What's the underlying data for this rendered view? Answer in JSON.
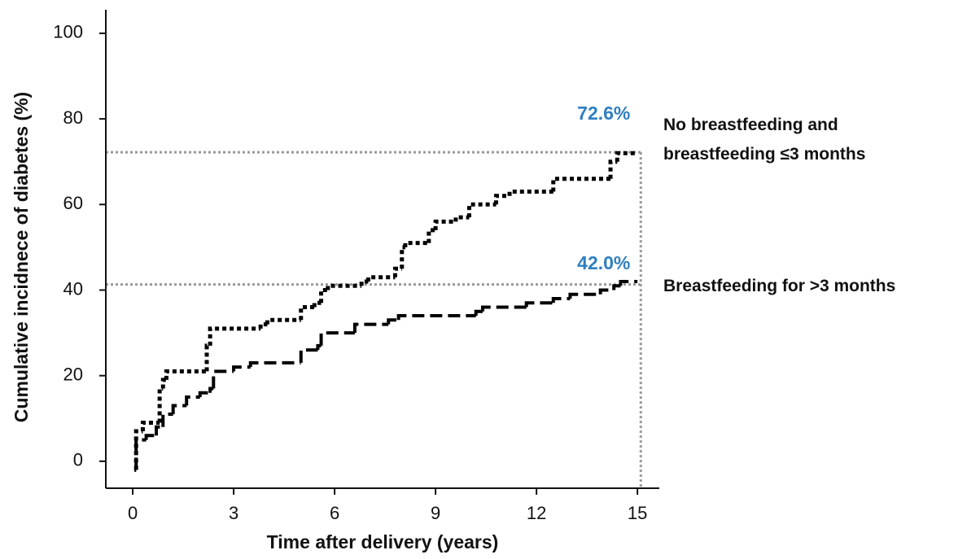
{
  "chart_data": {
    "type": "step",
    "x_label": "Time after delivery (years)",
    "y_label": "Cumulative incidnece of diabetes (%)",
    "xlim": [
      -0.8,
      15.65
    ],
    "ylim": [
      -6.3,
      105.5
    ],
    "xticks": [
      0,
      3,
      6,
      9,
      12,
      15
    ],
    "yticks": [
      0,
      20,
      40,
      60,
      80,
      100
    ],
    "hlines": [
      72.2,
      41.3
    ],
    "vline": 15.1,
    "annotations": [
      {
        "text": "72.6%",
        "x": 14.0,
        "y": 81
      },
      {
        "text": "42.0%",
        "x": 14.0,
        "y": 46
      }
    ],
    "series": [
      {
        "name": "No breastfeeding and breastfeeding ≤3 months",
        "color": "#000000",
        "dash": "dotted",
        "x": [
          0.05,
          0.1,
          0.3,
          0.8,
          0.9,
          1.0,
          2.2,
          2.3,
          3.8,
          4.0,
          5.0,
          5.4,
          5.6,
          5.8,
          6.8,
          7.0,
          7.8,
          8.0,
          8.1,
          8.8,
          9.0,
          9.6,
          10.0,
          10.8,
          11.2,
          12.5,
          14.2,
          14.4,
          15.0
        ],
        "values": [
          -2,
          7,
          9,
          17,
          19,
          21,
          27,
          31,
          32,
          33,
          36,
          37,
          40,
          41,
          42,
          43,
          45,
          50,
          51,
          54,
          56,
          57,
          60,
          62,
          63,
          66,
          70,
          72,
          72
        ]
      },
      {
        "name": "Breastfeeding for >3 months",
        "color": "#000000",
        "dash": "dashed",
        "x": [
          0.05,
          0.1,
          0.4,
          0.7,
          0.9,
          1.2,
          1.6,
          2.0,
          2.3,
          2.4,
          3.0,
          3.5,
          5.0,
          5.5,
          5.6,
          6.6,
          7.6,
          7.9,
          10.2,
          10.4,
          11.7,
          12.5,
          13.0,
          13.9,
          14.3,
          14.5,
          15.0
        ],
        "values": [
          -2,
          5,
          6,
          8,
          11,
          13,
          15,
          16,
          17,
          21,
          22,
          23,
          26,
          27,
          30,
          32,
          33,
          34,
          35,
          36,
          37,
          38,
          39,
          40,
          41,
          42,
          42
        ]
      }
    ]
  }
}
